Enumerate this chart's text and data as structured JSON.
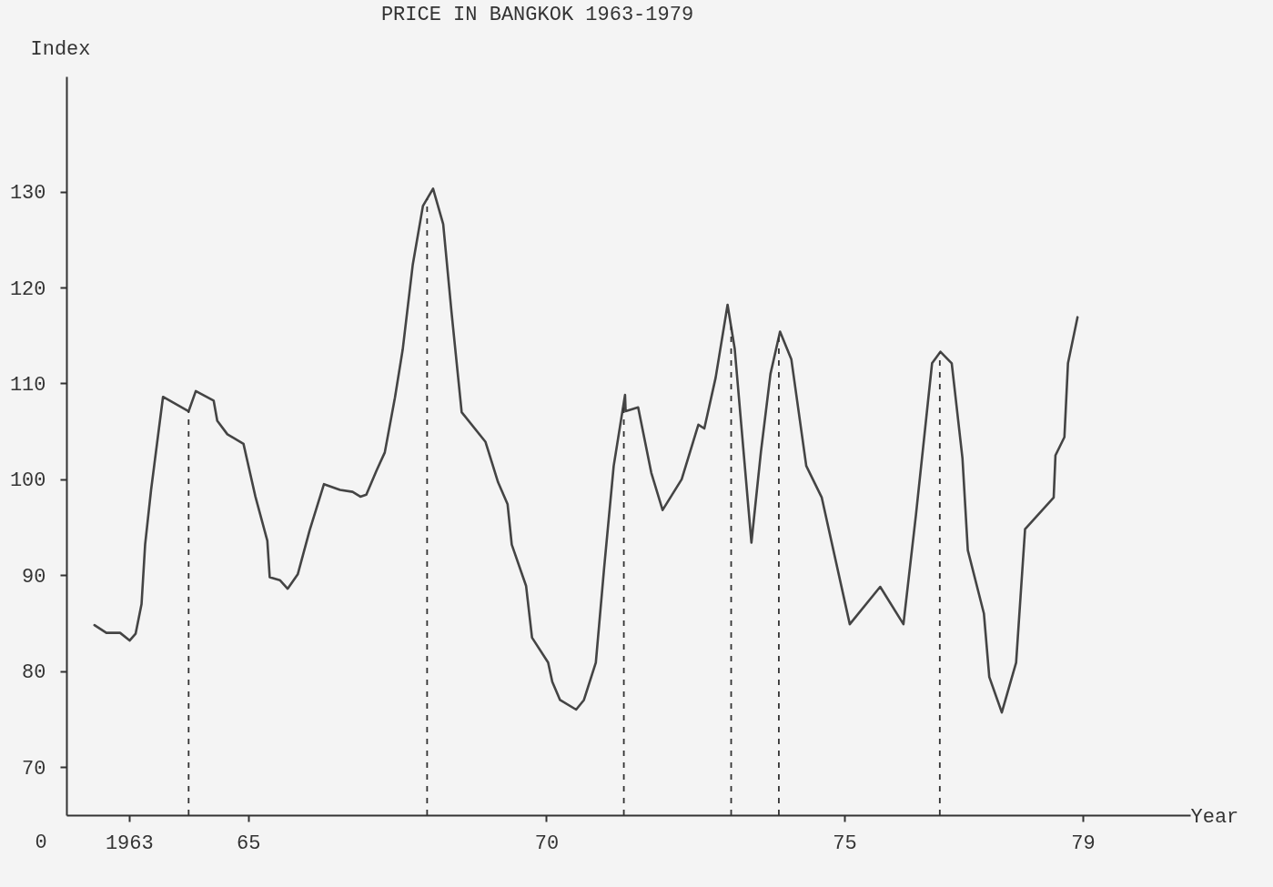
{
  "chart_data": {
    "type": "line",
    "title": "PRICE IN BANGKOK 1963-1979",
    "xlabel": "Year",
    "ylabel": "Index",
    "x": [
      1962.42,
      1962.62,
      1962.85,
      1963.01,
      1963.11,
      1963.21,
      1963.27,
      1963.37,
      1963.57,
      1964.0,
      1964.12,
      1964.42,
      1964.48,
      1964.65,
      1964.92,
      1965.12,
      1965.32,
      1965.36,
      1965.53,
      1965.66,
      1965.83,
      1966.03,
      1966.27,
      1966.54,
      1966.75,
      1966.88,
      1966.98,
      1967.15,
      1967.29,
      1967.46,
      1967.59,
      1967.76,
      1967.93,
      1968.1,
      1968.27,
      1968.41,
      1968.58,
      1968.98,
      1969.19,
      1969.35,
      1969.42,
      1969.66,
      1969.76,
      1970.03,
      1970.1,
      1970.23,
      1970.5,
      1970.63,
      1970.83,
      1970.97,
      1971.13,
      1971.32,
      1971.33,
      1971.54,
      1971.76,
      1971.95,
      1972.27,
      1972.55,
      1972.65,
      1972.84,
      1973.04,
      1973.16,
      1973.44,
      1973.6,
      1973.76,
      1973.92,
      1974.11,
      1974.36,
      1974.62,
      1975.09,
      1975.6,
      1975.99,
      1976.2,
      1976.47,
      1976.61,
      1976.8,
      1976.98,
      1977.07,
      1977.34,
      1977.43,
      1977.64,
      1977.88,
      1978.03,
      1978.51,
      1978.54,
      1978.69,
      1978.75,
      1978.91
    ],
    "series": [
      {
        "color": "#444444",
        "values": [
          84.8,
          84.0,
          84.0,
          83.2,
          83.9,
          87.0,
          93.2,
          98.9,
          108.6,
          107.1,
          109.2,
          108.2,
          106.1,
          104.7,
          103.7,
          98.2,
          93.6,
          89.8,
          89.5,
          88.6,
          90.1,
          94.7,
          99.5,
          98.9,
          98.7,
          98.2,
          98.4,
          100.9,
          102.8,
          108.5,
          113.5,
          122.4,
          128.5,
          130.3,
          126.6,
          117.4,
          107.0,
          103.9,
          99.7,
          97.4,
          93.2,
          88.9,
          83.5,
          80.9,
          78.9,
          77.0,
          76.0,
          77.0,
          80.9,
          90.8,
          101.4,
          108.8,
          107.1,
          107.5,
          100.7,
          96.8,
          100.0,
          105.7,
          105.3,
          110.6,
          118.2,
          113.6,
          93.4,
          102.9,
          111.0,
          115.4,
          112.5,
          101.4,
          98.1,
          84.9,
          88.8,
          84.9,
          96.3,
          112.1,
          113.3,
          112.1,
          102.2,
          92.6,
          86.0,
          79.4,
          75.7,
          80.9,
          94.8,
          98.1,
          102.5,
          104.4,
          112.1,
          116.9
        ]
      }
    ],
    "xlim": [
      1961.95,
      1980.8
    ],
    "ylim": [
      65,
      142
    ],
    "xticks": [
      {
        "value": 1963,
        "label": "1963"
      },
      {
        "value": 1965,
        "label": "65"
      },
      {
        "value": 1970,
        "label": "70"
      },
      {
        "value": 1975,
        "label": "75"
      },
      {
        "value": 1979,
        "label": "79"
      }
    ],
    "yticks": [
      70,
      80,
      90,
      100,
      110,
      120,
      130
    ],
    "ref_lines": [
      {
        "axis": "x",
        "value": 1964.0,
        "line_style": "dashed"
      },
      {
        "axis": "x",
        "value": 1968.0,
        "line_style": "dashed"
      },
      {
        "axis": "x",
        "value": 1971.3,
        "line_style": "dashed"
      },
      {
        "axis": "x",
        "value": 1973.1,
        "line_style": "dashed"
      },
      {
        "axis": "x",
        "value": 1973.9,
        "line_style": "dashed"
      },
      {
        "axis": "x",
        "value": 1976.6,
        "line_style": "dashed"
      }
    ],
    "annotations": [
      "0"
    ],
    "grid": false,
    "line_style": "solid",
    "marker": "none"
  }
}
